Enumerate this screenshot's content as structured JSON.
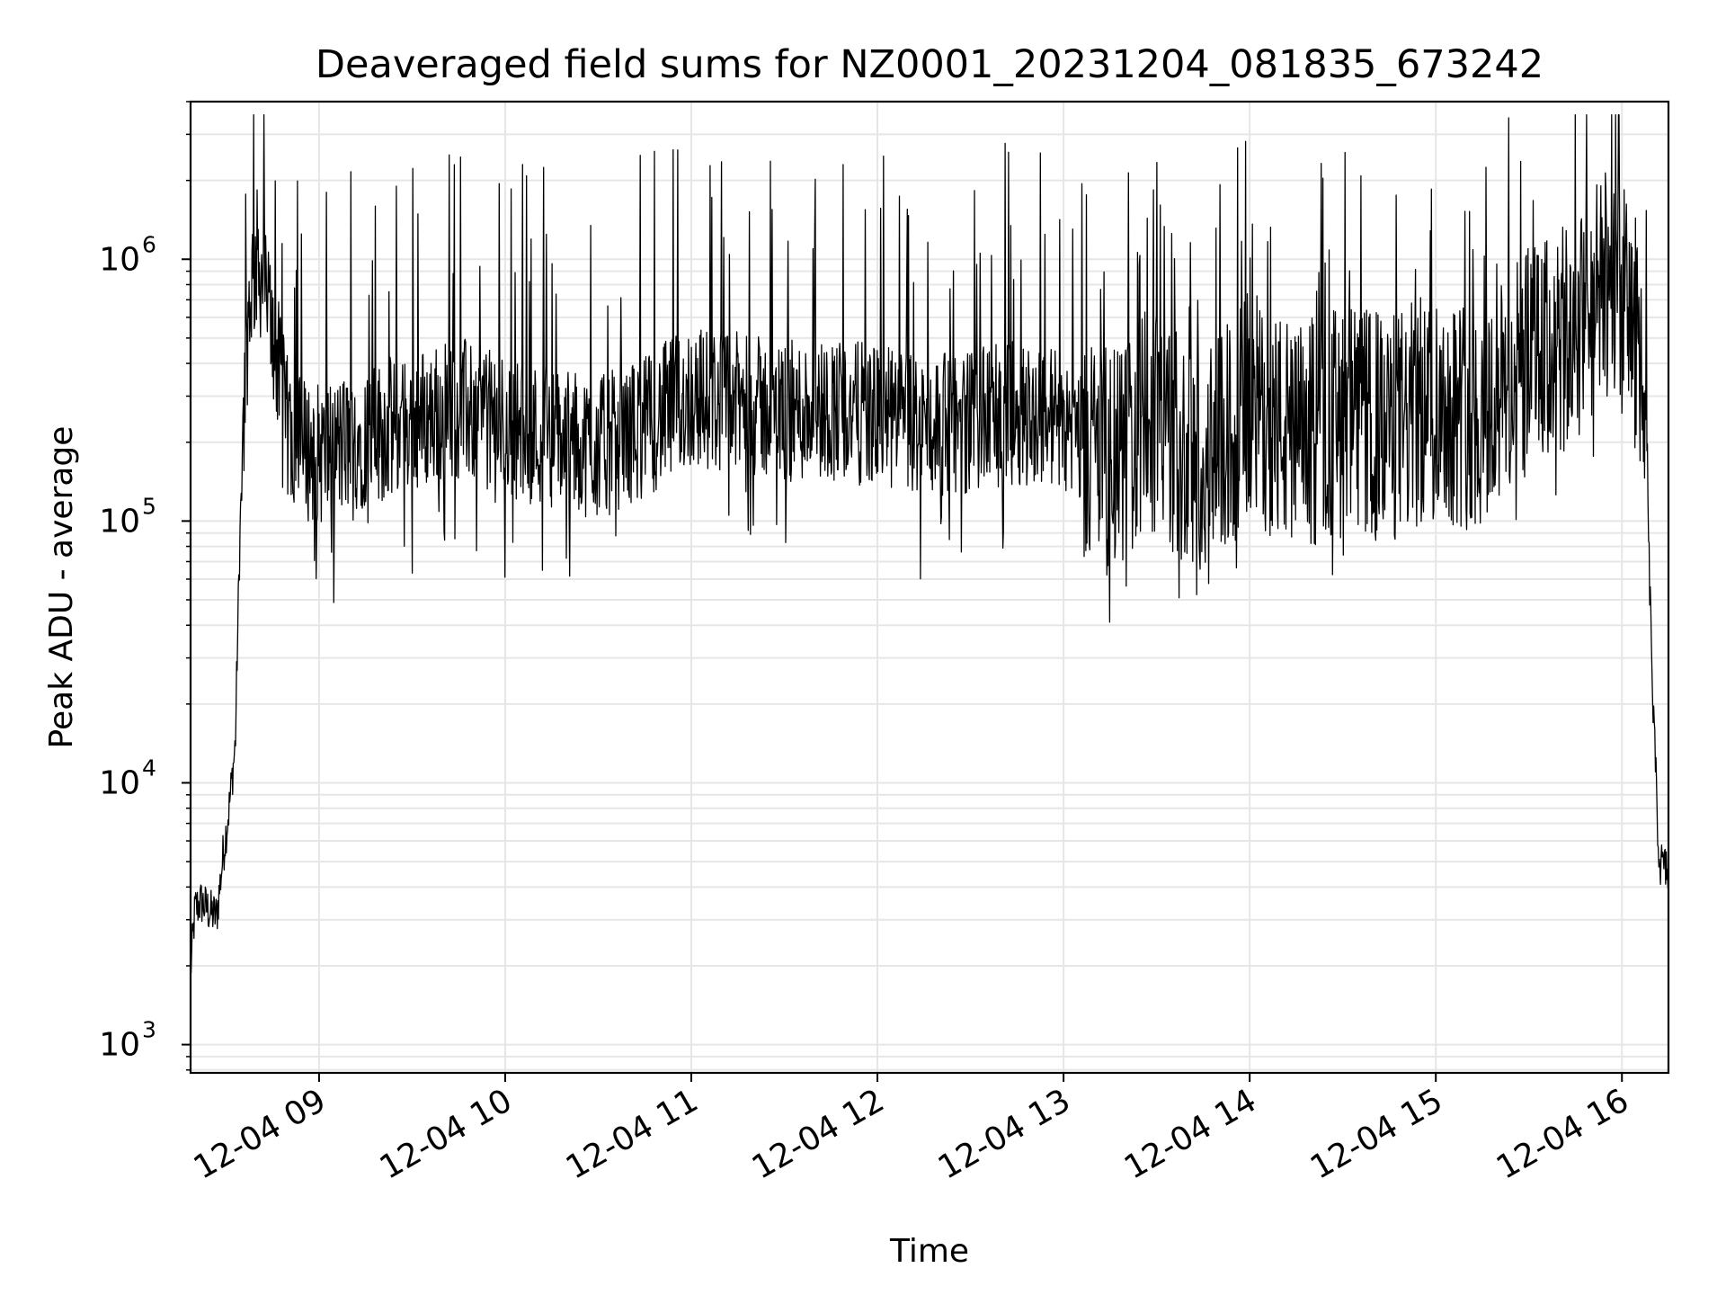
{
  "chart_data": {
    "type": "line",
    "title": "Deaveraged field sums for NZ0001_20231204_081835_673242",
    "xlabel": "Time",
    "ylabel": "Peak ADU - average",
    "yscale": "log",
    "ylim": [
      780,
      4000000
    ],
    "xlim": [
      "2023-12-04 08:18:35",
      "2023-12-04 16:15:00"
    ],
    "x_ticks": [
      {
        "value": "2023-12-04 09:00",
        "label": "12-04 09"
      },
      {
        "value": "2023-12-04 10:00",
        "label": "12-04 10"
      },
      {
        "value": "2023-12-04 11:00",
        "label": "12-04 11"
      },
      {
        "value": "2023-12-04 12:00",
        "label": "12-04 12"
      },
      {
        "value": "2023-12-04 13:00",
        "label": "12-04 13"
      },
      {
        "value": "2023-12-04 14:00",
        "label": "12-04 14"
      },
      {
        "value": "2023-12-04 15:00",
        "label": "12-04 15"
      },
      {
        "value": "2023-12-04 16:00",
        "label": "12-04 16"
      }
    ],
    "y_ticks": [
      {
        "value": 1000,
        "base": "10",
        "exp": "3"
      },
      {
        "value": 10000,
        "base": "10",
        "exp": "4"
      },
      {
        "value": 100000,
        "base": "10",
        "exp": "5"
      },
      {
        "value": 1000000,
        "base": "10",
        "exp": "6"
      }
    ],
    "grid": true,
    "grid_color": "#e6e6e6",
    "line_color": "#000000",
    "series": [
      {
        "x": [
          "2023-12-04 08:18:35",
          "2023-12-04 08:20",
          "2023-12-04 08:22",
          "2023-12-04 08:25",
          "2023-12-04 08:27",
          "2023-12-04 08:28",
          "2023-12-04 08:29",
          "2023-12-04 08:31",
          "2023-12-04 08:33",
          "2023-12-04 08:34",
          "2023-12-04 08:35",
          "2023-12-04 08:36",
          "2023-12-04 08:37",
          "2023-12-04 08:38",
          "2023-12-04 08:40",
          "2023-12-04 08:42",
          "2023-12-04 08:44",
          "2023-12-04 08:46",
          "2023-12-04 08:48",
          "2023-12-04 08:50",
          "2023-12-04 08:55",
          "2023-12-04 09:00",
          "2023-12-04 09:15",
          "2023-12-04 09:30",
          "2023-12-04 09:45",
          "2023-12-04 10:00",
          "2023-12-04 10:15",
          "2023-12-04 10:30",
          "2023-12-04 10:45",
          "2023-12-04 11:00",
          "2023-12-04 11:15",
          "2023-12-04 11:30",
          "2023-12-04 11:45",
          "2023-12-04 12:00",
          "2023-12-04 12:15",
          "2023-12-04 12:30",
          "2023-12-04 12:45",
          "2023-12-04 13:00",
          "2023-12-04 13:15",
          "2023-12-04 13:30",
          "2023-12-04 13:45",
          "2023-12-04 14:00",
          "2023-12-04 14:15",
          "2023-12-04 14:30",
          "2023-12-04 14:45",
          "2023-12-04 15:00",
          "2023-12-04 15:15",
          "2023-12-04 15:30",
          "2023-12-04 15:45",
          "2023-12-04 15:50",
          "2023-12-04 15:55",
          "2023-12-04 16:00",
          "2023-12-04 16:03",
          "2023-12-04 16:06",
          "2023-12-04 16:08",
          "2023-12-04 16:10",
          "2023-12-04 16:12",
          "2023-12-04 16:15"
        ],
        "y": [
          1900,
          3300,
          3500,
          3200,
          3100,
          4000,
          5200,
          8000,
          14000,
          50000,
          150000,
          300000,
          550000,
          800000,
          1000000,
          850000,
          600000,
          450000,
          300000,
          220000,
          190000,
          180000,
          210000,
          240000,
          270000,
          230000,
          210000,
          190000,
          230000,
          300000,
          280000,
          260000,
          270000,
          250000,
          230000,
          240000,
          260000,
          250000,
          160000,
          250000,
          150000,
          280000,
          200000,
          250000,
          220000,
          280000,
          250000,
          400000,
          500000,
          650000,
          800000,
          700000,
          600000,
          450000,
          150000,
          20000,
          5000,
          4500
        ]
      }
    ]
  }
}
